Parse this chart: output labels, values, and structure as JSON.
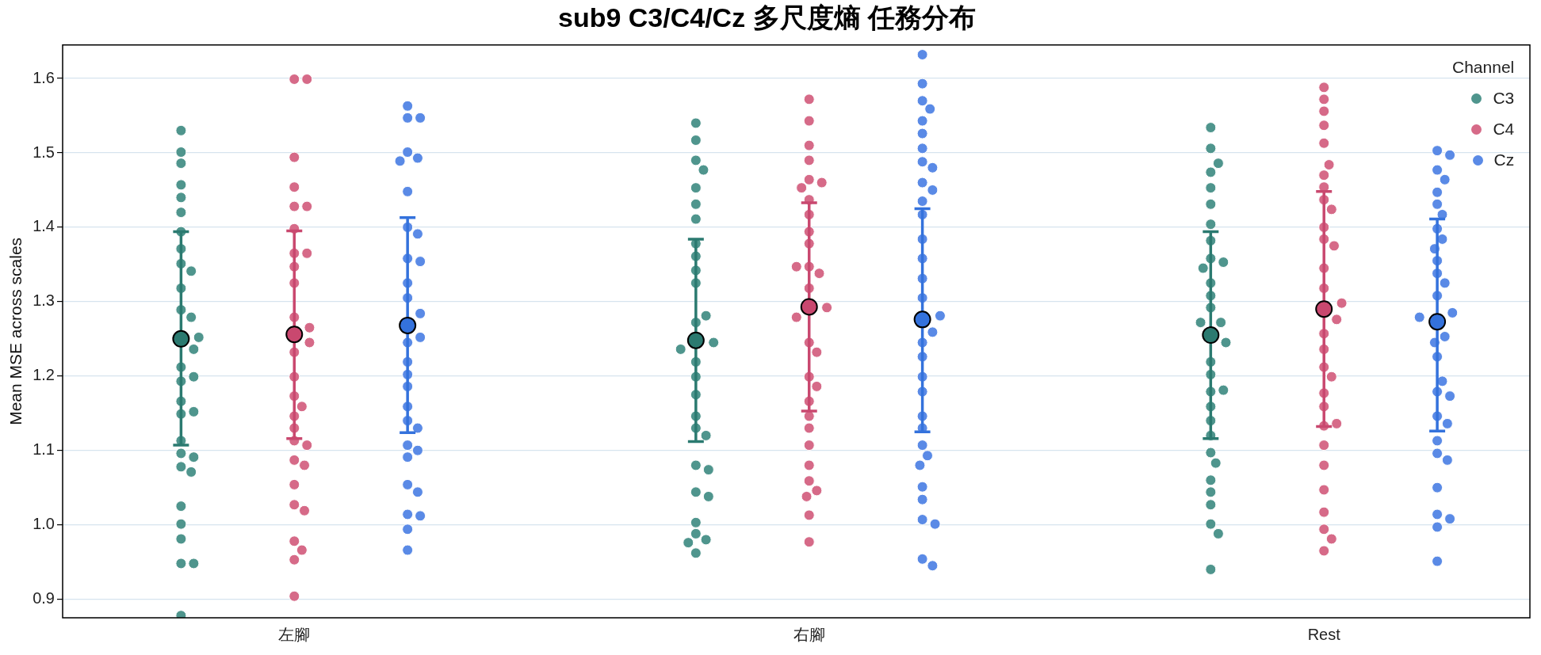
{
  "chart_data": {
    "type": "scatter",
    "title": "sub9 C3/C4/Cz 多尺度熵 任務分布",
    "ylabel": "Mean MSE across scales",
    "legend_title": "Channel",
    "legend": "top right",
    "grid": "y",
    "marker": "circle",
    "categories": [
      "左腳",
      "右腳",
      "Rest"
    ],
    "ylim": [
      0.875,
      1.645
    ],
    "yticks": [
      0.9,
      {
        "value": 1,
        "label": "1.0"
      },
      1.1,
      1.2,
      1.3,
      1.4,
      1.5,
      1.6
    ],
    "series": [
      {
        "name": "C3",
        "color": "#4f958d",
        "x": [
          "左腳",
          "左腳",
          "左腳",
          "左腳",
          "左腳",
          "左腳",
          "左腳",
          "左腳",
          "左腳",
          "左腳",
          "左腳",
          "左腳",
          "左腳",
          "左腳",
          "左腳",
          "左腳",
          "左腳",
          "左腳",
          "左腳",
          "左腳",
          "左腳",
          "左腳",
          "左腳",
          "左腳",
          "左腳",
          "左腳",
          "左腳",
          "左腳",
          "左腳",
          "左腳",
          "左腳",
          "左腳",
          "右腳",
          "右腳",
          "右腳",
          "右腳",
          "右腳",
          "右腳",
          "右腳",
          "右腳",
          "右腳",
          "右腳",
          "右腳",
          "右腳",
          "右腳",
          "右腳",
          "右腳",
          "右腳",
          "右腳",
          "右腳",
          "右腳",
          "右腳",
          "右腳",
          "右腳",
          "右腳",
          "右腳",
          "右腳",
          "右腳",
          "右腳",
          "右腳",
          "右腳",
          "右腳",
          "Rest",
          "Rest",
          "Rest",
          "Rest",
          "Rest",
          "Rest",
          "Rest",
          "Rest",
          "Rest",
          "Rest",
          "Rest",
          "Rest",
          "Rest",
          "Rest",
          "Rest",
          "Rest",
          "Rest",
          "Rest",
          "Rest",
          "Rest",
          "Rest",
          "Rest",
          "Rest",
          "Rest",
          "Rest",
          "Rest",
          "Rest",
          "Rest",
          "Rest",
          "Rest",
          "Rest",
          "Rest"
        ],
        "values": [
          1.53,
          1.486,
          1.457,
          1.44,
          1.501,
          1.42,
          1.394,
          1.371,
          1.351,
          1.341,
          1.318,
          1.289,
          1.279,
          1.252,
          1.236,
          1.212,
          1.193,
          1.199,
          1.166,
          1.149,
          1.152,
          1.113,
          1.096,
          1.091,
          1.078,
          1.071,
          1.025,
          1.001,
          0.981,
          0.948,
          0.948,
          0.878,
          1.49,
          1.54,
          1.517,
          1.477,
          1.453,
          1.431,
          1.411,
          1.378,
          1.361,
          1.342,
          1.325,
          1.272,
          1.281,
          1.245,
          1.236,
          1.219,
          1.199,
          1.175,
          1.146,
          1.13,
          1.12,
          1.08,
          1.044,
          1.074,
          1.038,
          1.003,
          0.988,
          0.98,
          0.976,
          0.962,
          1.534,
          1.506,
          1.474,
          1.486,
          1.453,
          1.431,
          1.404,
          1.382,
          1.358,
          1.353,
          1.345,
          1.325,
          1.308,
          1.292,
          1.272,
          1.272,
          1.245,
          1.219,
          1.202,
          1.179,
          1.181,
          1.159,
          1.14,
          1.12,
          1.097,
          1.083,
          1.06,
          1.044,
          1.027,
          1.001,
          0.988,
          0.94
        ]
      },
      {
        "name": "C4",
        "color": "#d66a88",
        "x": [
          "左腳",
          "左腳",
          "左腳",
          "左腳",
          "左腳",
          "左腳",
          "左腳",
          "左腳",
          "左腳",
          "左腳",
          "左腳",
          "左腳",
          "左腳",
          "左腳",
          "左腳",
          "左腳",
          "左腳",
          "左腳",
          "左腳",
          "左腳",
          "左腳",
          "左腳",
          "左腳",
          "左腳",
          "左腳",
          "左腳",
          "左腳",
          "左腳",
          "左腳",
          "左腳",
          "左腳",
          "右腳",
          "右腳",
          "右腳",
          "右腳",
          "右腳",
          "右腳",
          "右腳",
          "右腳",
          "右腳",
          "右腳",
          "右腳",
          "右腳",
          "右腳",
          "右腳",
          "右腳",
          "右腳",
          "右腳",
          "右腳",
          "右腳",
          "右腳",
          "右腳",
          "右腳",
          "右腳",
          "右腳",
          "右腳",
          "右腳",
          "右腳",
          "右腳",
          "右腳",
          "右腳",
          "右腳",
          "Rest",
          "Rest",
          "Rest",
          "Rest",
          "Rest",
          "Rest",
          "Rest",
          "Rest",
          "Rest",
          "Rest",
          "Rest",
          "Rest",
          "Rest",
          "Rest",
          "Rest",
          "Rest",
          "Rest",
          "Rest",
          "Rest",
          "Rest",
          "Rest",
          "Rest",
          "Rest",
          "Rest",
          "Rest",
          "Rest",
          "Rest",
          "Rest",
          "Rest",
          "Rest",
          "Rest",
          "Rest"
        ],
        "values": [
          1.599,
          1.599,
          1.494,
          1.428,
          1.428,
          1.454,
          1.398,
          1.365,
          1.365,
          1.347,
          1.325,
          1.279,
          1.265,
          1.232,
          1.245,
          1.199,
          1.173,
          1.146,
          1.159,
          1.13,
          1.113,
          1.107,
          1.087,
          1.08,
          1.054,
          1.027,
          1.019,
          0.978,
          0.966,
          0.953,
          0.904,
          1.572,
          1.543,
          1.51,
          1.49,
          1.464,
          1.46,
          1.453,
          1.437,
          1.417,
          1.394,
          1.378,
          1.347,
          1.338,
          1.347,
          1.318,
          1.292,
          1.279,
          1.245,
          1.232,
          1.199,
          1.186,
          1.166,
          1.13,
          1.146,
          1.107,
          1.08,
          1.059,
          1.046,
          1.038,
          1.013,
          0.977,
          1.588,
          1.572,
          1.556,
          1.537,
          1.513,
          1.437,
          1.47,
          1.484,
          1.454,
          1.424,
          1.4,
          1.384,
          1.375,
          1.345,
          1.318,
          1.276,
          1.298,
          1.257,
          1.236,
          1.212,
          1.199,
          1.177,
          1.159,
          1.133,
          1.136,
          1.107,
          1.08,
          1.047,
          0.994,
          1.017,
          0.981,
          0.965
        ]
      },
      {
        "name": "Cz",
        "color": "#5a8ae6",
        "x": [
          "左腳",
          "左腳",
          "左腳",
          "左腳",
          "左腳",
          "左腳",
          "左腳",
          "左腳",
          "左腳",
          "左腳",
          "左腳",
          "左腳",
          "左腳",
          "左腳",
          "左腳",
          "左腳",
          "左腳",
          "左腳",
          "左腳",
          "左腳",
          "左腳",
          "左腳",
          "左腳",
          "左腳",
          "左腳",
          "左腳",
          "左腳",
          "左腳",
          "左腳",
          "左腳",
          "左腳",
          "右腳",
          "右腳",
          "右腳",
          "右腳",
          "右腳",
          "右腳",
          "右腳",
          "右腳",
          "右腳",
          "右腳",
          "右腳",
          "右腳",
          "右腳",
          "右腳",
          "右腳",
          "右腳",
          "右腳",
          "右腳",
          "右腳",
          "右腳",
          "右腳",
          "右腳",
          "右腳",
          "右腳",
          "右腳",
          "右腳",
          "右腳",
          "右腳",
          "右腳",
          "右腳",
          "右腳",
          "右腳",
          "右腳",
          "右腳",
          "Rest",
          "Rest",
          "Rest",
          "Rest",
          "Rest",
          "Rest",
          "Rest",
          "Rest",
          "Rest",
          "Rest",
          "Rest",
          "Rest",
          "Rest",
          "Rest",
          "Rest",
          "Rest",
          "Rest",
          "Rest",
          "Rest",
          "Rest",
          "Rest",
          "Rest",
          "Rest",
          "Rest",
          "Rest",
          "Rest",
          "Rest",
          "Rest",
          "Rest",
          "Rest",
          "Rest",
          "Rest"
        ],
        "values": [
          1.563,
          1.547,
          1.547,
          1.501,
          1.493,
          1.489,
          1.448,
          1.4,
          1.391,
          1.358,
          1.354,
          1.325,
          1.305,
          1.284,
          1.252,
          1.245,
          1.219,
          1.202,
          1.186,
          1.159,
          1.14,
          1.13,
          1.107,
          1.1,
          1.091,
          1.054,
          1.044,
          1.014,
          1.012,
          0.994,
          0.966,
          1.632,
          1.593,
          1.57,
          1.559,
          1.543,
          1.526,
          1.506,
          1.488,
          1.48,
          1.46,
          1.45,
          1.435,
          1.417,
          1.384,
          1.358,
          1.331,
          1.305,
          1.281,
          1.259,
          1.245,
          1.226,
          1.199,
          1.179,
          1.146,
          1.13,
          1.107,
          1.093,
          1.08,
          1.051,
          1.034,
          1.007,
          1.001,
          0.954,
          0.945,
          1.503,
          1.497,
          1.477,
          1.464,
          1.447,
          1.431,
          1.417,
          1.398,
          1.384,
          1.371,
          1.355,
          1.338,
          1.325,
          1.308,
          1.285,
          1.279,
          1.253,
          1.245,
          1.226,
          1.179,
          1.193,
          1.173,
          1.146,
          1.136,
          1.113,
          1.096,
          1.087,
          1.05,
          1.014,
          1.008,
          0.951,
          0.997
        ]
      },
      {
        "color": "#2b7a70",
        "x": [
          "左腳",
          "右腳",
          "Rest"
        ],
        "values": [
          1.25,
          1.248,
          1.255
        ],
        "errors": [
          [
            1.107,
            1.394
          ],
          [
            1.112,
            1.384
          ],
          [
            1.116,
            1.394
          ]
        ]
      },
      {
        "color": "#c9486f",
        "x": [
          "左腳",
          "右腳",
          "Rest"
        ],
        "values": [
          1.256,
          1.293,
          1.29
        ],
        "errors": [
          [
            1.116,
            1.395
          ],
          [
            1.153,
            1.433
          ],
          [
            1.132,
            1.448
          ]
        ]
      },
      {
        "color": "#3472dc",
        "x": [
          "左腳",
          "右腳",
          "Rest"
        ],
        "values": [
          1.268,
          1.276,
          1.273
        ],
        "errors": [
          [
            1.124,
            1.413
          ],
          [
            1.125,
            1.425
          ],
          [
            1.126,
            1.411
          ]
        ]
      }
    ]
  }
}
